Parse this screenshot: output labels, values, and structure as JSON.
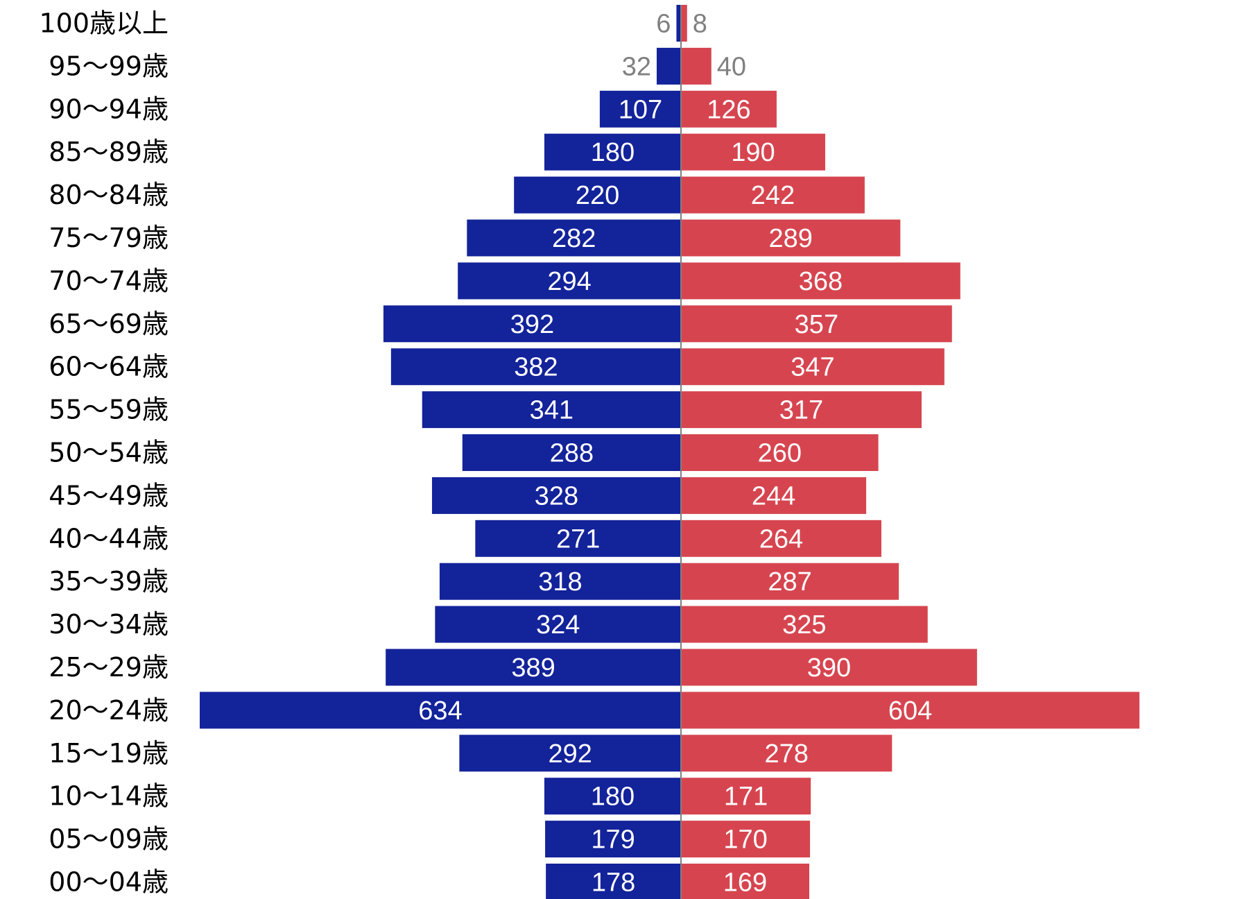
{
  "chart_data": {
    "type": "bar",
    "orientation": "horizontal-diverging",
    "categories": [
      "100歳以上",
      "95～99歳",
      "90～94歳",
      "85～89歳",
      "80～84歳",
      "75～79歳",
      "70～74歳",
      "65～69歳",
      "60～64歳",
      "55～59歳",
      "50～54歳",
      "45～49歳",
      "40～44歳",
      "35～39歳",
      "30～34歳",
      "25～29歳",
      "20～24歳",
      "15～19歳",
      "10～14歳",
      "05～09歳",
      "00～04歳"
    ],
    "series": [
      {
        "color": "#13239a",
        "direction": "left",
        "values": [
          6,
          32,
          107,
          180,
          220,
          282,
          294,
          392,
          382,
          341,
          288,
          328,
          271,
          318,
          324,
          389,
          634,
          292,
          180,
          179,
          178
        ]
      },
      {
        "color": "#d6454f",
        "direction": "right",
        "values": [
          8,
          40,
          126,
          190,
          242,
          289,
          368,
          357,
          347,
          317,
          260,
          244,
          264,
          287,
          325,
          390,
          604,
          278,
          171,
          170,
          169
        ]
      }
    ],
    "xlim": [
      634,
      604
    ],
    "title": "",
    "xlabel": "",
    "ylabel": "",
    "legend": "none",
    "grid": false,
    "label_color_inside": "#ffffff",
    "label_color_outside": "#808080",
    "axis_line_color": "#808080"
  }
}
